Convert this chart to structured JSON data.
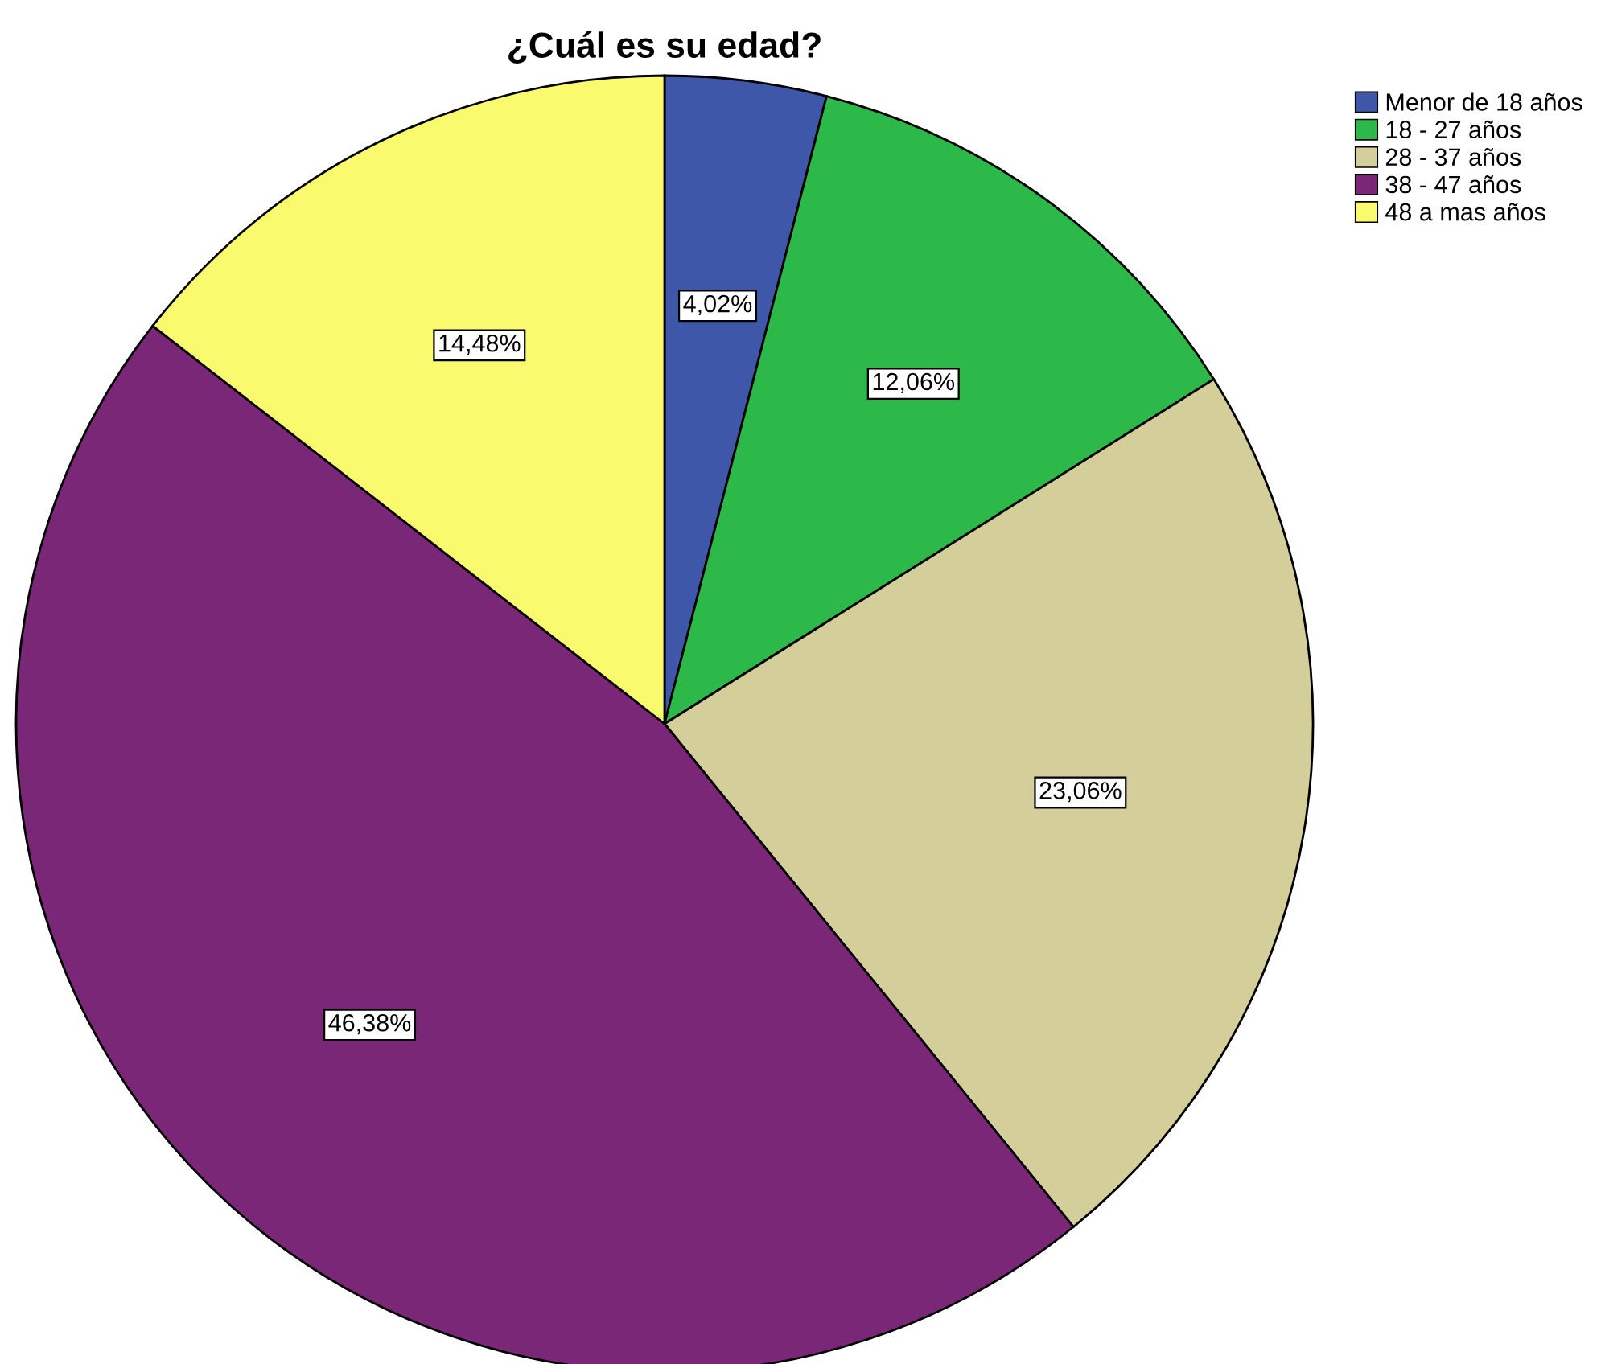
{
  "chart_data": {
    "type": "pie",
    "title": "¿Cuál es su edad?",
    "categories": [
      "Menor de 18 años",
      "18 - 27 años",
      "28 - 37 años",
      "38 - 47 años",
      "48 a mas años"
    ],
    "values": [
      4.02,
      12.06,
      23.06,
      46.38,
      14.48
    ],
    "value_labels": [
      "4,02%",
      "12,06%",
      "23,06%",
      "46,38%",
      "14,48%"
    ],
    "colors": [
      "#3f57a8",
      "#2db84a",
      "#d3ce9a",
      "#7b2778",
      "#fafa6e"
    ],
    "legend": "top right"
  }
}
